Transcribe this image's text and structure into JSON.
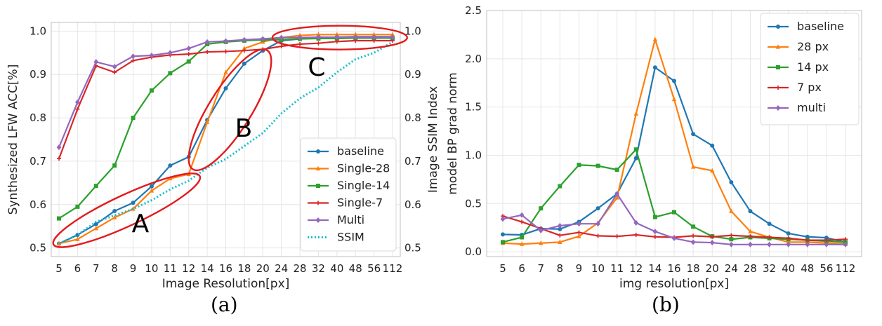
{
  "colors": {
    "baseline": "#1f77b4",
    "single28": "#ff7f0e",
    "single14": "#2ca02c",
    "single7": "#d62728",
    "multi": "#9467bd",
    "ssim": "#17becf",
    "annotation": "#e31a1c"
  },
  "captions": {
    "a": "(a)",
    "b": "(b)"
  },
  "chart_data": [
    {
      "type": "line",
      "categories": [
        "5",
        "6",
        "7",
        "8",
        "9",
        "10",
        "11",
        "12",
        "14",
        "16",
        "18",
        "20",
        "24",
        "28",
        "32",
        "40",
        "48",
        "56",
        "112"
      ],
      "xlabel": "Image Resolution[px]",
      "ylabel": "Synthesized LFW ACC[%]",
      "ylabel_right": "Image SSIM Index",
      "ylim": [
        0.48,
        1.02
      ],
      "ylim_right": [
        0.48,
        1.02
      ],
      "yticks": [
        0.5,
        0.6,
        0.7,
        0.8,
        0.9,
        1.0
      ],
      "ytick_labels": [
        "0.5",
        "0.6",
        "0.7",
        "0.8",
        "0.9",
        "1.0"
      ],
      "grid": true,
      "legend": "lower-right",
      "annotations": [
        "A",
        "B",
        "C"
      ],
      "series": [
        {
          "name": "baseline",
          "key": "baseline",
          "marker": "circle",
          "values": [
            0.51,
            0.53,
            0.555,
            0.585,
            0.604,
            0.642,
            0.69,
            0.71,
            0.795,
            0.868,
            0.925,
            0.955,
            0.978,
            0.982,
            0.985,
            0.986,
            0.987,
            0.987,
            0.987
          ]
        },
        {
          "name": "Single-28",
          "key": "single28",
          "marker": "triangle",
          "values": [
            0.51,
            0.52,
            0.545,
            0.57,
            0.59,
            0.632,
            0.66,
            0.67,
            0.79,
            0.905,
            0.96,
            0.975,
            0.985,
            0.99,
            0.992,
            0.992,
            0.992,
            0.992,
            0.992
          ]
        },
        {
          "name": "Single-14",
          "key": "single14",
          "marker": "square",
          "values": [
            0.568,
            0.595,
            0.643,
            0.69,
            0.8,
            0.863,
            0.903,
            0.93,
            0.97,
            0.975,
            0.978,
            0.98,
            0.98,
            0.982,
            0.983,
            0.983,
            0.984,
            0.984,
            0.984
          ]
        },
        {
          "name": "Single-7",
          "key": "single7",
          "marker": "plus",
          "values": [
            0.706,
            0.82,
            0.92,
            0.905,
            0.932,
            0.94,
            0.945,
            0.947,
            0.952,
            0.953,
            0.955,
            0.958,
            0.965,
            0.97,
            0.972,
            0.976,
            0.978,
            0.978,
            0.978
          ]
        },
        {
          "name": "Multi",
          "key": "multi",
          "marker": "diamond",
          "values": [
            0.732,
            0.836,
            0.929,
            0.918,
            0.942,
            0.944,
            0.95,
            0.96,
            0.975,
            0.977,
            0.98,
            0.982,
            0.985,
            0.985,
            0.986,
            0.986,
            0.986,
            0.986,
            0.986
          ]
        },
        {
          "name": "SSIM",
          "key": "ssim",
          "marker": "none",
          "dotted": true,
          "values": [
            0.51,
            0.53,
            0.56,
            0.575,
            0.59,
            0.61,
            0.635,
            0.655,
            0.685,
            0.705,
            0.735,
            0.765,
            0.81,
            0.845,
            0.87,
            0.905,
            0.935,
            0.95,
            0.975
          ]
        }
      ]
    },
    {
      "type": "line",
      "categories": [
        "5",
        "6",
        "7",
        "8",
        "9",
        "10",
        "11",
        "12",
        "14",
        "16",
        "18",
        "20",
        "24",
        "28",
        "32",
        "40",
        "48",
        "56",
        "112"
      ],
      "xlabel": "img resolution[px]",
      "ylabel": "model BP grad norm",
      "ylim": [
        -0.05,
        2.5
      ],
      "yticks": [
        0.0,
        0.5,
        1.0,
        1.5,
        2.0,
        2.5
      ],
      "ytick_labels": [
        "0.0",
        "0.5",
        "1.0",
        "1.5",
        "2.0",
        "2.5"
      ],
      "grid": true,
      "legend": "upper-right",
      "series": [
        {
          "name": "baseline",
          "key": "baseline",
          "marker": "circle",
          "values": [
            0.18,
            0.175,
            0.24,
            0.235,
            0.31,
            0.45,
            0.6,
            0.97,
            1.91,
            1.77,
            1.22,
            1.1,
            0.72,
            0.42,
            0.29,
            0.19,
            0.155,
            0.145,
            0.1
          ]
        },
        {
          "name": "28 px",
          "key": "single28",
          "marker": "triangle",
          "values": [
            0.09,
            0.08,
            0.09,
            0.1,
            0.16,
            0.3,
            0.56,
            1.43,
            2.2,
            1.58,
            0.88,
            0.84,
            0.42,
            0.21,
            0.15,
            0.1,
            0.1,
            0.09,
            0.08
          ]
        },
        {
          "name": "14 px",
          "key": "single14",
          "marker": "square",
          "values": [
            0.1,
            0.15,
            0.45,
            0.68,
            0.9,
            0.89,
            0.85,
            1.06,
            0.36,
            0.41,
            0.26,
            0.16,
            0.13,
            0.15,
            0.14,
            0.13,
            0.12,
            0.11,
            0.1
          ]
        },
        {
          "name": "7 px",
          "key": "single7",
          "marker": "plus",
          "values": [
            0.37,
            0.31,
            0.24,
            0.17,
            0.2,
            0.165,
            0.16,
            0.175,
            0.155,
            0.15,
            0.165,
            0.155,
            0.17,
            0.16,
            0.15,
            0.14,
            0.12,
            0.12,
            0.13
          ]
        },
        {
          "name": "multi",
          "key": "multi",
          "marker": "diamond",
          "values": [
            0.34,
            0.38,
            0.22,
            0.27,
            0.29,
            0.29,
            0.6,
            0.3,
            0.21,
            0.14,
            0.1,
            0.095,
            0.075,
            0.075,
            0.075,
            0.075,
            0.075,
            0.075,
            0.075
          ]
        }
      ]
    }
  ]
}
